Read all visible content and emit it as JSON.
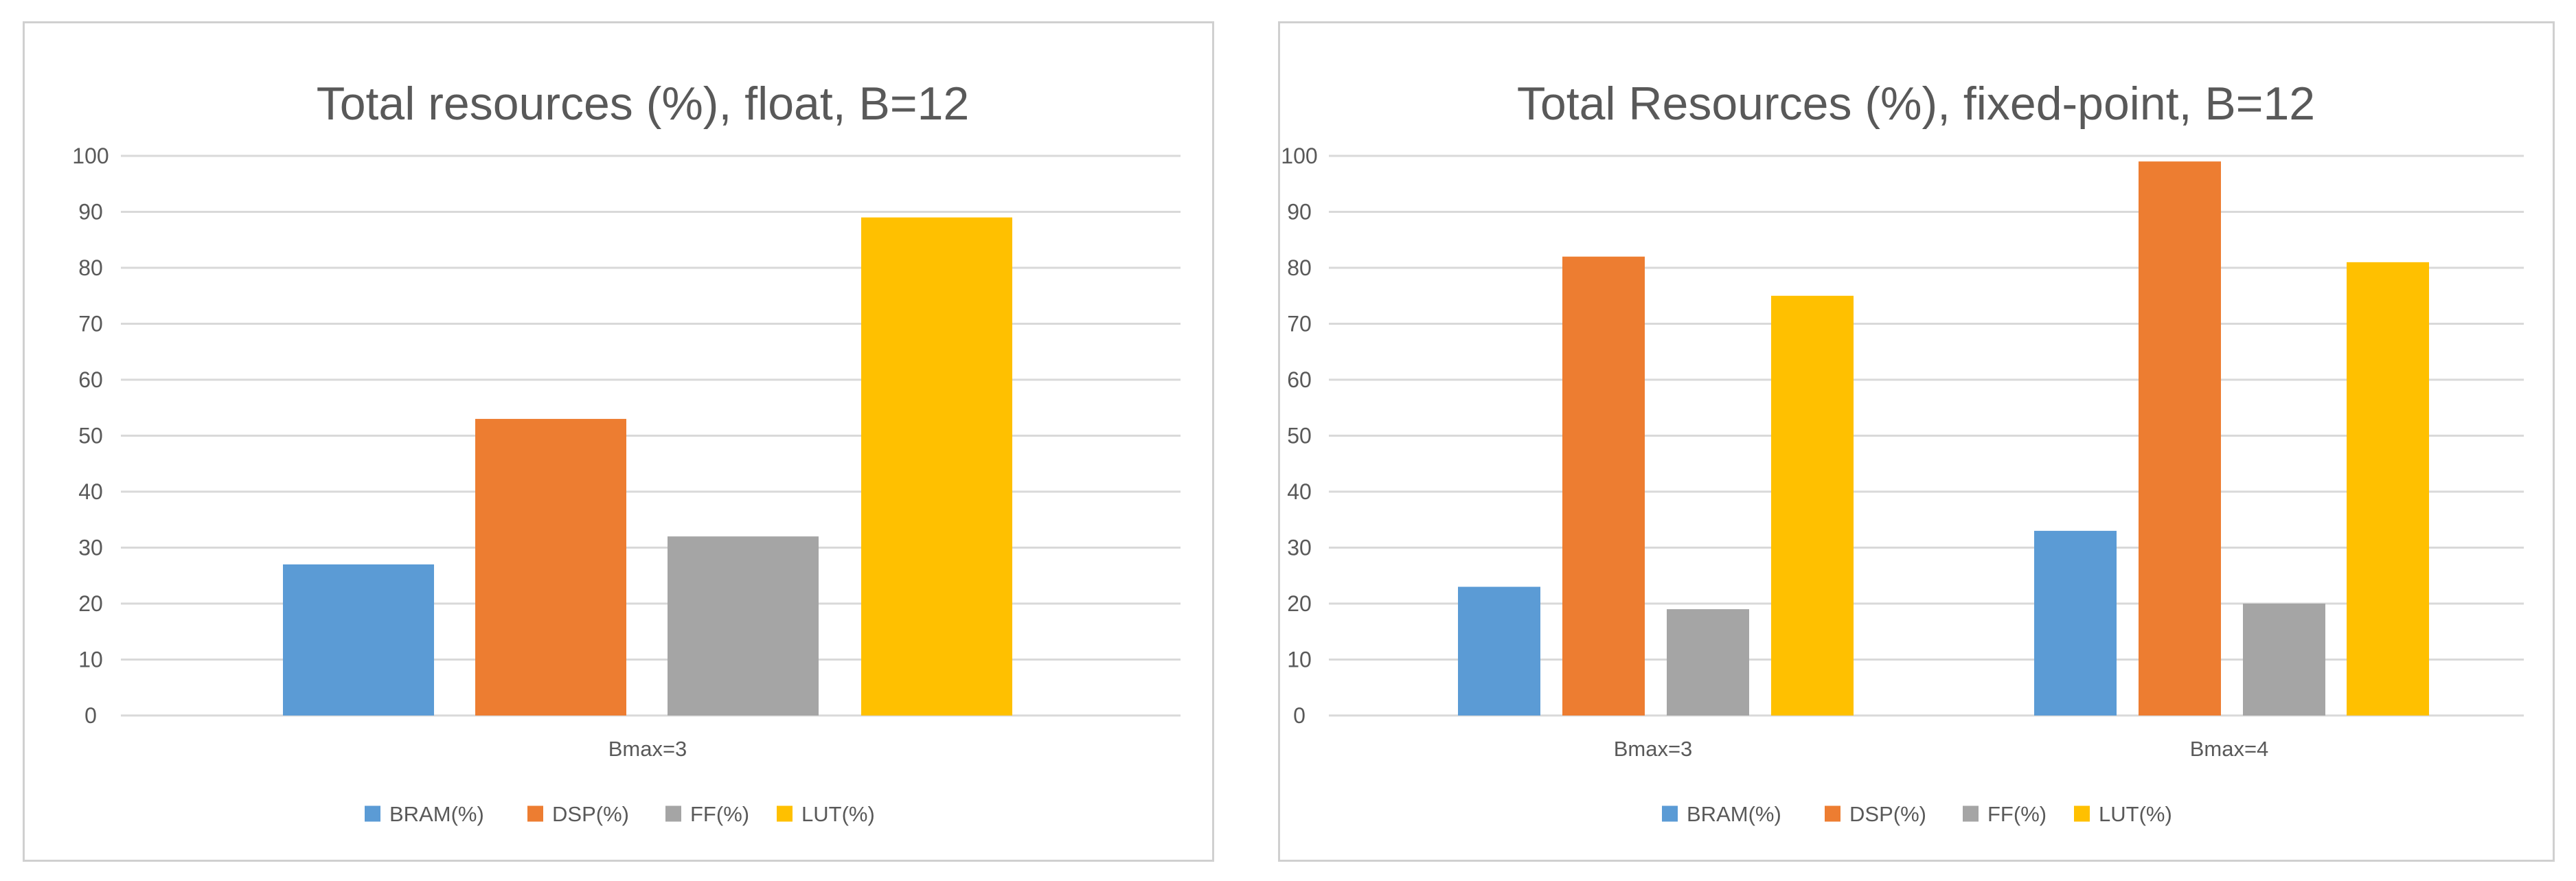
{
  "chart_data": [
    {
      "type": "bar",
      "title": "Total resources (%), float, B=12",
      "xlabel": "",
      "ylabel": "",
      "ylim": [
        0,
        100
      ],
      "yticks": [
        0,
        10,
        20,
        30,
        40,
        50,
        60,
        70,
        80,
        90,
        100
      ],
      "grid": true,
      "legend_position": "bottom",
      "categories": [
        "Bmax=3"
      ],
      "series": [
        {
          "name": "BRAM(%)",
          "color": "#5B9BD5",
          "values": [
            27
          ]
        },
        {
          "name": "DSP(%)",
          "color": "#ED7D31",
          "values": [
            53
          ]
        },
        {
          "name": "FF(%)",
          "color": "#A5A5A5",
          "values": [
            32
          ]
        },
        {
          "name": "LUT(%)",
          "color": "#FFC000",
          "values": [
            89
          ]
        }
      ]
    },
    {
      "type": "bar",
      "title": "Total Resources (%),  fixed-point, B=12",
      "xlabel": "",
      "ylabel": "",
      "ylim": [
        0,
        100
      ],
      "yticks": [
        0,
        10,
        20,
        30,
        40,
        50,
        60,
        70,
        80,
        90,
        100
      ],
      "grid": true,
      "legend_position": "bottom",
      "categories": [
        "Bmax=3",
        "Bmax=4"
      ],
      "series": [
        {
          "name": "BRAM(%)",
          "color": "#5B9BD5",
          "values": [
            23,
            33
          ]
        },
        {
          "name": "DSP(%)",
          "color": "#ED7D31",
          "values": [
            82,
            99
          ]
        },
        {
          "name": "FF(%)",
          "color": "#A5A5A5",
          "values": [
            19,
            20
          ]
        },
        {
          "name": "LUT(%)",
          "color": "#FFC000",
          "values": [
            75,
            81
          ]
        }
      ]
    }
  ]
}
